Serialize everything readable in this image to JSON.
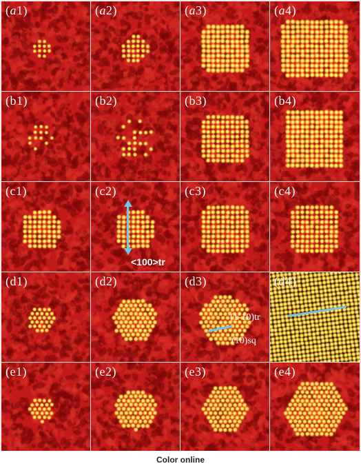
{
  "panels": [
    {
      "label": "(a1)",
      "italic_letter": true,
      "nucleus": {
        "shape": "round",
        "radius": 14,
        "lattice": "square",
        "spacing": 7,
        "dot": 2.0
      }
    },
    {
      "label": "(a2)",
      "italic_letter": true,
      "nucleus": {
        "shape": "round",
        "radius": 20,
        "lattice": "square",
        "spacing": 7,
        "dot": 2.2
      }
    },
    {
      "label": "(a3)",
      "italic_letter": true,
      "nucleus": {
        "shape": "rect",
        "radius": 34,
        "lattice": "square",
        "spacing": 7,
        "dot": 2.6
      }
    },
    {
      "label": "(a4)",
      "italic_letter": true,
      "nucleus": {
        "shape": "rect",
        "radius": 46,
        "lattice": "square",
        "spacing": 7,
        "dot": 2.6
      }
    },
    {
      "label": "(b1)",
      "italic_letter": false,
      "nucleus": {
        "shape": "round",
        "radius": 22,
        "lattice": "sparse",
        "spacing": 8,
        "dot": 2.0
      }
    },
    {
      "label": "(b2)",
      "italic_letter": false,
      "nucleus": {
        "shape": "round",
        "radius": 28,
        "lattice": "sparse",
        "spacing": 8,
        "dot": 2.2
      }
    },
    {
      "label": "(b3)",
      "italic_letter": false,
      "nucleus": {
        "shape": "rect",
        "radius": 34,
        "lattice": "square",
        "spacing": 7,
        "dot": 2.4
      }
    },
    {
      "label": "(b4)",
      "italic_letter": false,
      "nucleus": {
        "shape": "rect",
        "radius": 44,
        "lattice": "square",
        "spacing": 7,
        "dot": 2.6
      }
    },
    {
      "label": "(c1)",
      "italic_letter": false,
      "nucleus": {
        "shape": "round",
        "radius": 30,
        "lattice": "square",
        "spacing": 7,
        "dot": 2.4
      }
    },
    {
      "label": "(c2)",
      "italic_letter": false,
      "nucleus": {
        "shape": "round",
        "radius": 30,
        "lattice": "square",
        "spacing": 7,
        "dot": 2.4
      }
    },
    {
      "label": "(c3)",
      "italic_letter": false,
      "nucleus": {
        "shape": "rect",
        "radius": 34,
        "lattice": "square",
        "spacing": 7,
        "dot": 2.4
      }
    },
    {
      "label": "(c4)",
      "italic_letter": false,
      "nucleus": {
        "shape": "rect",
        "radius": 34,
        "lattice": "square",
        "spacing": 7,
        "dot": 2.4
      }
    },
    {
      "label": "(d1)",
      "italic_letter": false,
      "nucleus": {
        "shape": "round",
        "radius": 20,
        "lattice": "hex",
        "spacing": 7,
        "dot": 2.2
      }
    },
    {
      "label": "(d2)",
      "italic_letter": false,
      "nucleus": {
        "shape": "round",
        "radius": 32,
        "lattice": "hex",
        "spacing": 7,
        "dot": 2.4
      }
    },
    {
      "label": "(d3)",
      "italic_letter": false,
      "nucleus": {
        "shape": "round",
        "radius": 36,
        "lattice": "hex",
        "spacing": 7,
        "dot": 2.4
      }
    },
    {
      "label": "(d4)",
      "italic_letter": false,
      "nucleus": {
        "shape": "full",
        "radius": 0,
        "lattice": "square",
        "spacing": 6,
        "dot": 2.3
      }
    },
    {
      "label": "(e1)",
      "italic_letter": false,
      "nucleus": {
        "shape": "round",
        "radius": 18,
        "lattice": "hex",
        "spacing": 7,
        "dot": 2.2
      }
    },
    {
      "label": "(e2)",
      "italic_letter": false,
      "nucleus": {
        "shape": "round",
        "radius": 30,
        "lattice": "hex",
        "spacing": 7,
        "dot": 2.4
      }
    },
    {
      "label": "(e3)",
      "italic_letter": false,
      "nucleus": {
        "shape": "hexagon",
        "radius": 36,
        "lattice": "hex",
        "spacing": 7,
        "dot": 2.4
      }
    },
    {
      "label": "(e4)",
      "italic_letter": false,
      "nucleus": {
        "shape": "hexagon",
        "radius": 44,
        "lattice": "hex",
        "spacing": 7,
        "dot": 2.4
      }
    }
  ],
  "annotations": {
    "c2_direction": "<100>tr",
    "d3_plane_tr": "(1-10)tr",
    "d3_plane_sq": "(10)sq"
  },
  "caption": "Color online",
  "colors": {
    "background_red": "#c21a1a",
    "dark_red": "#8e0c0c",
    "atom_yellow": "#ffe24a",
    "annotation_blue": "#6ec6e8",
    "d4_dark": "#2a0606"
  }
}
